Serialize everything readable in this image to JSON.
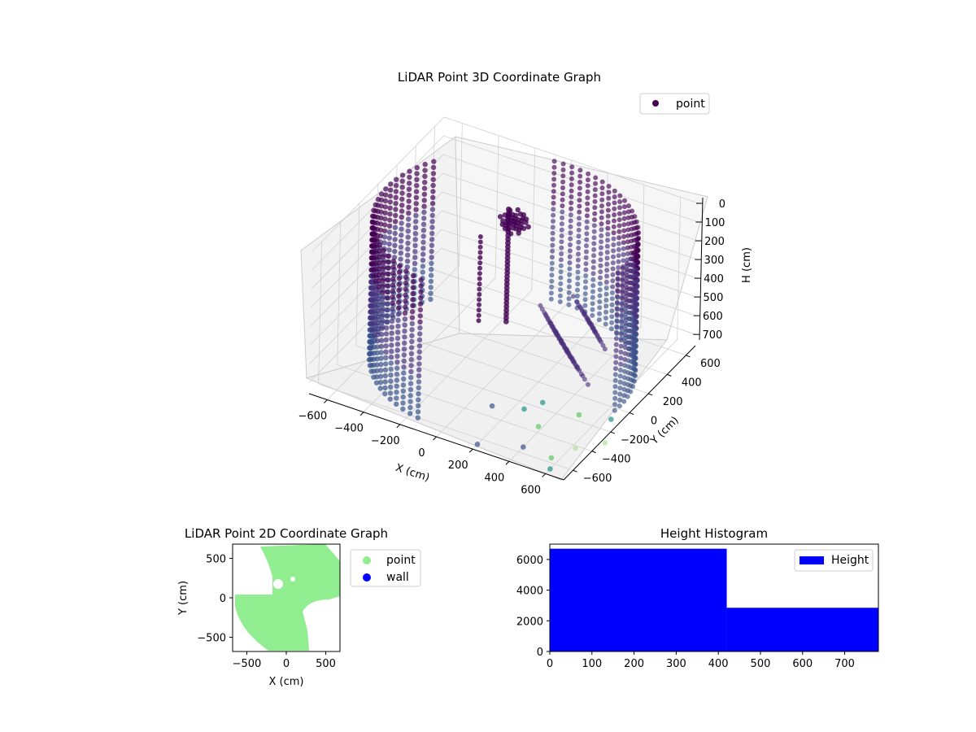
{
  "chart_data": [
    {
      "type": "scatter",
      "projection": "3d",
      "title": "LiDAR Point 3D Coordinate Graph",
      "xlabel": "X (cm)",
      "ylabel": "Y (cm)",
      "zlabel": "H (cm)",
      "xlim": [
        -700,
        700
      ],
      "ylim": [
        -700,
        700
      ],
      "zlim": [
        0,
        760
      ],
      "z_inverted": true,
      "x_ticks": [
        "−600",
        "−400",
        "−200",
        "0",
        "200",
        "400",
        "600"
      ],
      "y_ticks": [
        "−600",
        "−400",
        "−200",
        "0",
        "200",
        "400",
        "600"
      ],
      "z_ticks": [
        "0",
        "100",
        "200",
        "300",
        "400",
        "500",
        "600",
        "700"
      ],
      "legend": {
        "entries": [
          "point"
        ],
        "placement": "top-right"
      },
      "colormap": "viridis",
      "colors": {
        "deep": "#440154",
        "mid": "#3b528b",
        "teal": "#21918c",
        "light": "#5ec962",
        "pale": "#b8de9a"
      },
      "series": [
        {
          "name": "point",
          "description": "dense purple point cloud: two wall arcs (west and north-east) plus pillars and scattered outliers"
        }
      ],
      "sample_points": [
        {
          "x": -550,
          "y": -350,
          "h": 0
        },
        {
          "x": -600,
          "y": 0,
          "h": 100
        },
        {
          "x": -500,
          "y": 300,
          "h": 300
        },
        {
          "x": -200,
          "y": 550,
          "h": 400
        },
        {
          "x": 200,
          "y": 600,
          "h": 500
        },
        {
          "x": 550,
          "y": 350,
          "h": 700
        },
        {
          "x": 600,
          "y": 0,
          "h": 300
        },
        {
          "x": 300,
          "y": -550,
          "h": 600
        },
        {
          "x": 0,
          "y": -600,
          "h": 700
        },
        {
          "x": 450,
          "y": -500,
          "h": 760
        },
        {
          "x": 600,
          "y": -700,
          "h": 760
        },
        {
          "x": 250,
          "y": -350,
          "h": 760
        }
      ]
    },
    {
      "type": "scatter",
      "title": "LiDAR Point 2D Coordinate Graph",
      "xlabel": "X (cm)",
      "ylabel": "Y (cm)",
      "xlim": [
        -680,
        680
      ],
      "ylim": [
        -680,
        680
      ],
      "x_ticks": [
        "−500",
        "0",
        "500"
      ],
      "y_ticks": [
        "−500",
        "0",
        "500"
      ],
      "legend": {
        "entries": [
          "point",
          "wall"
        ],
        "placement": "outside-right"
      },
      "colors": {
        "point": "#90ee90",
        "wall": "#0000ff"
      },
      "series": [
        {
          "name": "point",
          "description": "light green filled point cloud covering most of the area"
        },
        {
          "name": "wall",
          "description": "blue wall points (none visible)"
        }
      ]
    },
    {
      "type": "bar",
      "subtype": "histogram",
      "title": "Height Histogram",
      "xlim": [
        0,
        780
      ],
      "ylim": [
        0,
        7000
      ],
      "x_ticks": [
        "0",
        "100",
        "200",
        "300",
        "400",
        "500",
        "600",
        "700"
      ],
      "y_ticks": [
        "0",
        "2000",
        "4000",
        "6000"
      ],
      "legend": {
        "entries": [
          "Height"
        ],
        "placement": "top-right"
      },
      "color": "#0000ff",
      "series": [
        {
          "name": "Height",
          "bins": [
            [
              0,
              420
            ],
            [
              420,
              780
            ]
          ],
          "values": [
            6700,
            2850
          ]
        }
      ]
    }
  ]
}
